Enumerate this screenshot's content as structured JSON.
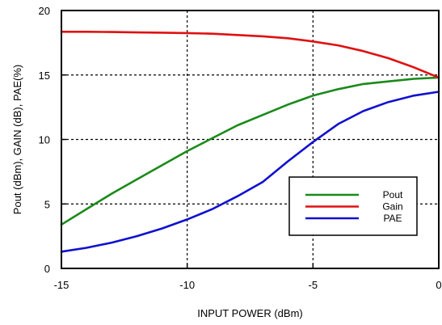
{
  "chart_data": {
    "type": "line",
    "xlabel": "INPUT POWER (dBm)",
    "ylabel": "Pout (dBm), GAIN (dB), PAE(%)",
    "xlim": [
      -15,
      0
    ],
    "ylim": [
      0,
      20
    ],
    "x_ticks": [
      "-15",
      "-10",
      "-5",
      "0"
    ],
    "y_ticks": [
      "0",
      "5",
      "10",
      "15",
      "20"
    ],
    "grid": "dashed",
    "legend_position": "bottom-right",
    "series": [
      {
        "name": "Pout",
        "color": "#1a8a1a",
        "x": [
          -15,
          -14,
          -13,
          -12,
          -11,
          -10,
          -9,
          -8,
          -7,
          -6,
          -5,
          -4,
          -3,
          -2,
          -1,
          0
        ],
        "y": [
          3.4,
          4.6,
          5.8,
          6.9,
          8.0,
          9.1,
          10.1,
          11.1,
          11.9,
          12.7,
          13.4,
          13.9,
          14.3,
          14.5,
          14.7,
          14.8
        ]
      },
      {
        "name": "Gain",
        "color": "#e01010",
        "x": [
          -15,
          -14,
          -13,
          -12,
          -11,
          -10,
          -9,
          -8,
          -7,
          -6,
          -5,
          -4,
          -3,
          -2,
          -1,
          0
        ],
        "y": [
          18.35,
          18.35,
          18.33,
          18.3,
          18.28,
          18.25,
          18.2,
          18.1,
          18.0,
          17.85,
          17.6,
          17.3,
          16.85,
          16.3,
          15.6,
          14.8
        ]
      },
      {
        "name": "PAE",
        "color": "#1010d0",
        "x": [
          -15,
          -14,
          -13,
          -12,
          -11,
          -10,
          -9,
          -8,
          -7,
          -6,
          -5,
          -4,
          -3,
          -2,
          -1,
          0
        ],
        "y": [
          1.3,
          1.6,
          2.0,
          2.5,
          3.1,
          3.8,
          4.6,
          5.6,
          6.7,
          8.3,
          9.8,
          11.2,
          12.2,
          12.9,
          13.4,
          13.7
        ]
      }
    ]
  }
}
